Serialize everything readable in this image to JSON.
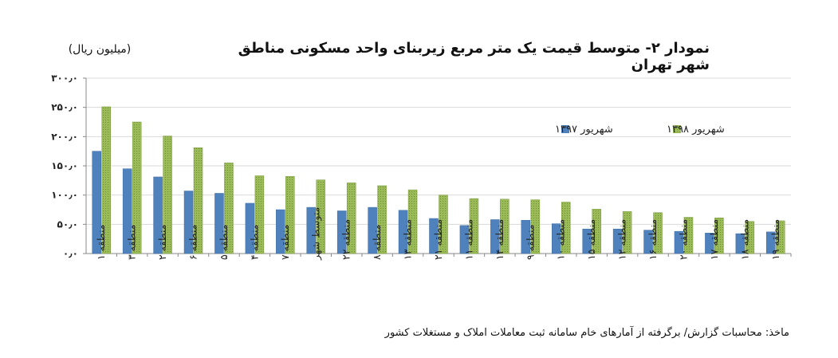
{
  "chart_data": {
    "type": "bar",
    "title": "نمودار ۲- متوسط قیمت یک متر مربع زیربنای واحد مسکونی مناطق شهر تهران",
    "unit_label": "(میلیون ریال)",
    "source": "ماخذ: محاسبات گزارش/ برگرفته از آمارهای خام سامانه ثبت معاملات املاک و مستغلات کشور",
    "ylim": [
      0,
      300
    ],
    "y_ticks": [
      "۰٫۰",
      "۵۰٫۰",
      "۱۰۰٫۰",
      "۱۵۰٫۰",
      "۲۰۰٫۰",
      "۲۵۰٫۰",
      "۳۰۰٫۰"
    ],
    "grid": true,
    "legend_position": "top-right",
    "categories": [
      "منطقه ۱",
      "منطقه ۳",
      "منطقه ۲",
      "منطقه ۶",
      "منطقه ۵",
      "منطقه ۴",
      "منطقه ۷",
      "متوسط شهر",
      "منطقه ۲۲",
      "منطقه ۸",
      "منطقه ۱۳",
      "منطقه ۲۱",
      "منطقه ۱۱",
      "منطقه ۱۴",
      "منطقه ۹",
      "منطقه ۱۰",
      "منطقه ۱۵",
      "منطقه ۱۲",
      "منطقه ۱۶",
      "منطقه ۲۰",
      "منطقه ۱۷",
      "منطقه ۱۸",
      "منطقه ۱۹"
    ],
    "series": [
      {
        "name": "شهریور ۱۳۹۷",
        "color": "#4f81bd",
        "values": [
          175,
          145,
          131,
          107,
          103,
          86,
          75,
          79,
          73,
          79,
          74,
          60,
          48,
          58,
          57,
          51,
          42,
          42,
          40,
          38,
          35,
          34,
          37
        ]
      },
      {
        "name": "شهریور ۱۳۹۸",
        "color": "#9bbb59",
        "values": [
          251,
          225,
          201,
          181,
          155,
          133,
          132,
          126,
          121,
          116,
          109,
          100,
          94,
          93,
          92,
          88,
          76,
          72,
          70,
          62,
          61,
          55,
          56
        ]
      }
    ]
  }
}
